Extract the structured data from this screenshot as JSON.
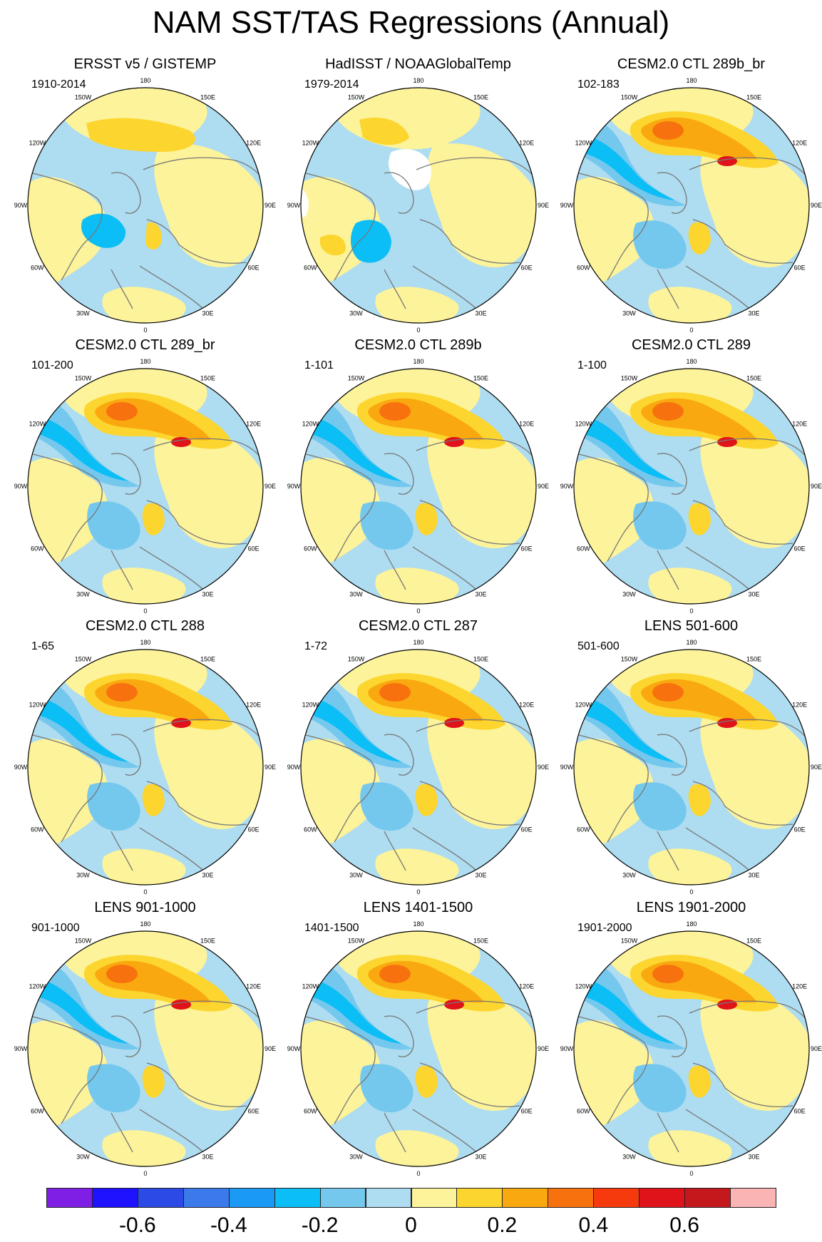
{
  "title": "NAM SST/TAS Regressions (Annual)",
  "panels": [
    {
      "name": "ERSST v5 / GISTEMP",
      "period": "1910-2014",
      "style": "obs"
    },
    {
      "name": "HadISST / NOAAGlobalTemp",
      "period": "1979-2014",
      "style": "obs2"
    },
    {
      "name": "CESM2.0 CTL 289b_br",
      "period": "102-183",
      "style": "model"
    },
    {
      "name": "CESM2.0 CTL 289_br",
      "period": "101-200",
      "style": "model"
    },
    {
      "name": "CESM2.0 CTL 289b",
      "period": "1-101",
      "style": "model"
    },
    {
      "name": "CESM2.0 CTL 289",
      "period": "1-100",
      "style": "model"
    },
    {
      "name": "CESM2.0 CTL 288",
      "period": "1-65",
      "style": "model"
    },
    {
      "name": "CESM2.0 CTL 287",
      "period": "1-72",
      "style": "model"
    },
    {
      "name": "LENS 501-600",
      "period": "501-600",
      "style": "model"
    },
    {
      "name": "LENS 901-1000",
      "period": "901-1000",
      "style": "model"
    },
    {
      "name": "LENS 1401-1500",
      "period": "1401-1500",
      "style": "model"
    },
    {
      "name": "LENS 1901-2000",
      "period": "1901-2000",
      "style": "model"
    }
  ],
  "longitude_labels": [
    "180",
    "150E",
    "120E",
    "90E",
    "60E",
    "30E",
    "0",
    "30W",
    "60W",
    "90W",
    "120W",
    "150W"
  ],
  "colorbar": {
    "colors": [
      "#7f1fe6",
      "#1e12ff",
      "#2b4ae6",
      "#3a7aeb",
      "#1a9af5",
      "#0bbef5",
      "#74c8ee",
      "#aedcf0",
      "#fdf39a",
      "#fcd52e",
      "#f9a90f",
      "#f7720f",
      "#f73a0d",
      "#e0121a",
      "#c3191d",
      "#fbb4b4"
    ],
    "tick_labels": [
      "-0.6",
      "-0.4",
      "-0.2",
      "0",
      "0.2",
      "0.4",
      "0.6"
    ],
    "tick_values": [
      -0.6,
      -0.4,
      -0.2,
      0,
      0.2,
      0.4,
      0.6
    ]
  }
}
